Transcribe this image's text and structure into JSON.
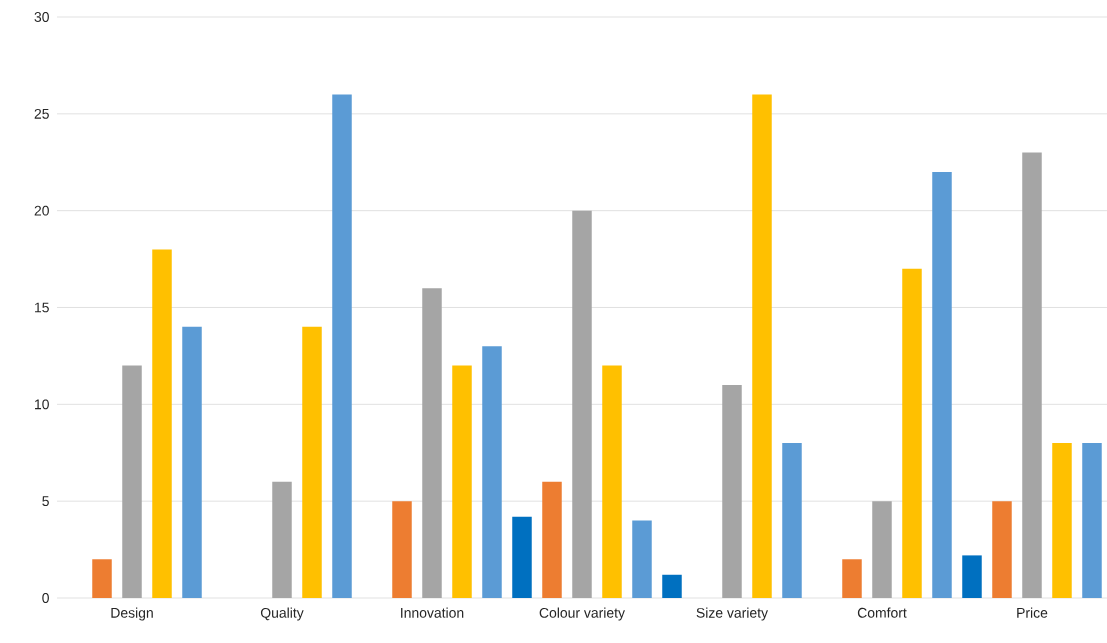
{
  "chart_data": {
    "type": "bar",
    "categories": [
      "Design",
      "Quality",
      "Innovation",
      "Colour variety",
      "Size variety",
      "Comfort",
      "Price"
    ],
    "series": [
      {
        "color": "#0070c0",
        "values": [
          0,
          0,
          0,
          4.2,
          1.2,
          0,
          2.2
        ]
      },
      {
        "color": "#ed7d31",
        "values": [
          2,
          0,
          5,
          6,
          0,
          2,
          5
        ]
      },
      {
        "color": "#a5a5a5",
        "values": [
          12,
          6,
          16,
          20,
          11,
          5,
          23
        ]
      },
      {
        "color": "#ffc000",
        "values": [
          18,
          14,
          12,
          12,
          26,
          17,
          8
        ]
      },
      {
        "color": "#5b9bd5",
        "values": [
          14,
          26,
          13,
          4,
          8,
          22,
          8
        ]
      }
    ],
    "ylim": [
      0,
      30
    ],
    "yticks": [
      0,
      5,
      10,
      15,
      20,
      25,
      30
    ],
    "grid": "y"
  }
}
